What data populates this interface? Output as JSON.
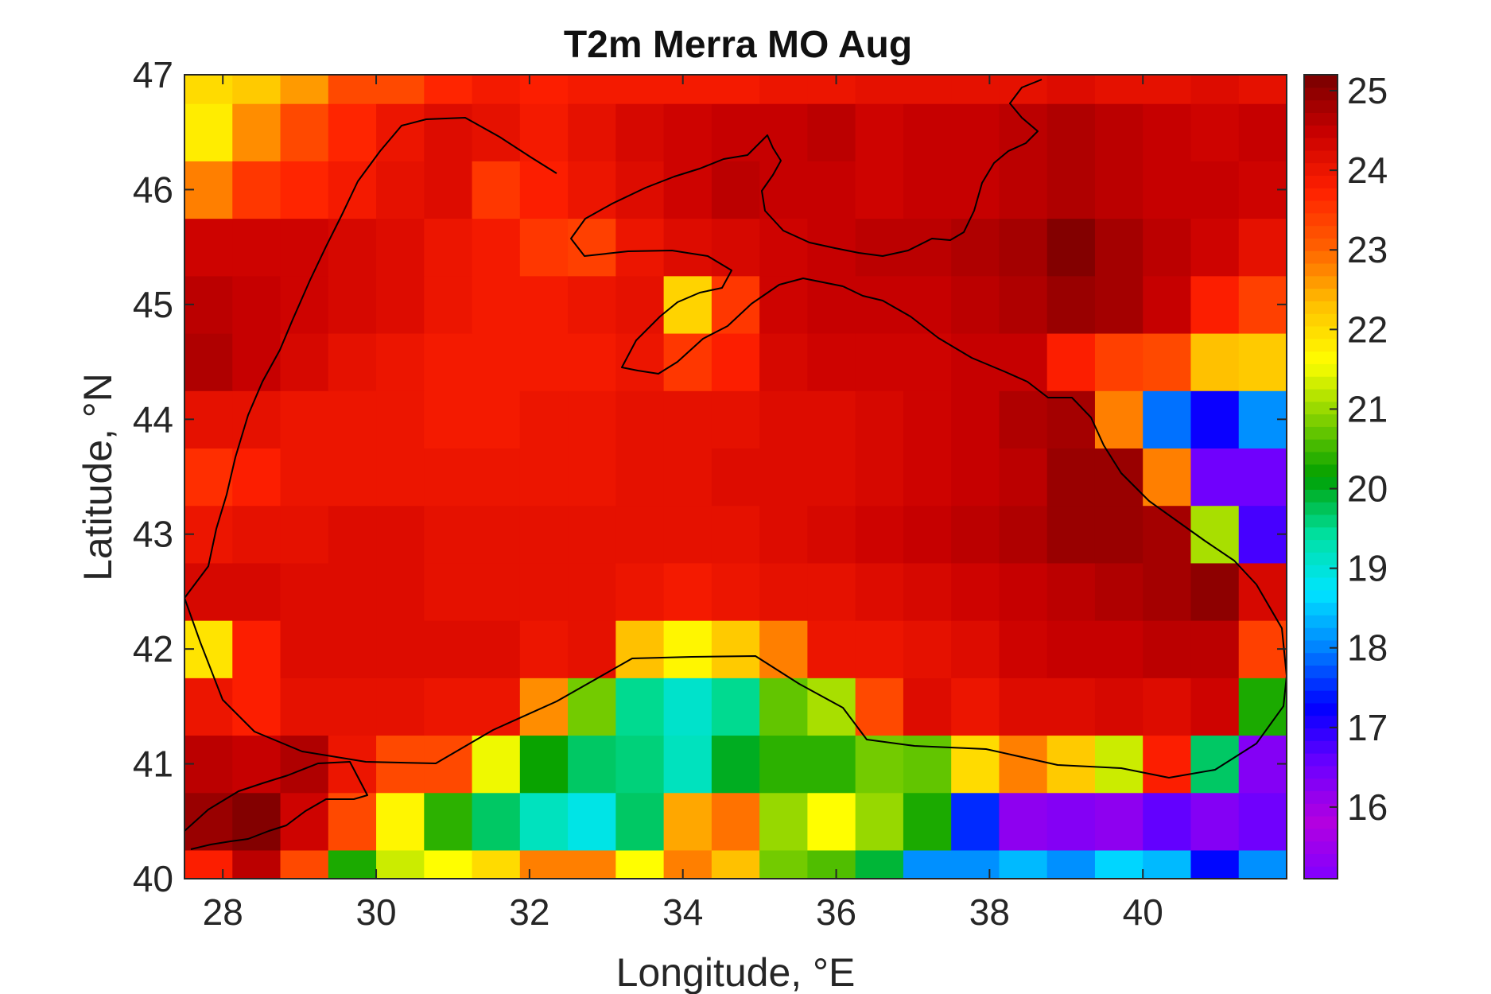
{
  "chart_data": {
    "type": "heatmap",
    "title": "T2m Merra MO Aug",
    "xlabel": "Longitude, °E",
    "ylabel": "Latitude, °N",
    "xlim": [
      27.5,
      41.875
    ],
    "ylim": [
      40,
      47
    ],
    "xticks": [
      "28",
      "30",
      "32",
      "34",
      "36",
      "38",
      "40"
    ],
    "yticks": [
      "40",
      "41",
      "42",
      "43",
      "44",
      "45",
      "46",
      "47"
    ],
    "colorbar_ticks": [
      "16",
      "17",
      "18",
      "19",
      "20",
      "21",
      "22",
      "23",
      "24",
      "25"
    ],
    "clim": [
      15.1,
      25.2
    ],
    "colormap": [
      "#8000ff",
      "#b400e0",
      "#6c00ff",
      "#0000ff",
      "#0080ff",
      "#00e5ff",
      "#00e0a0",
      "#00a000",
      "#80d000",
      "#ffff00",
      "#ffc000",
      "#ff6000",
      "#ff2000",
      "#c80000",
      "#780000"
    ],
    "grid_x_edges": [
      27.5,
      28.125,
      28.75,
      29.375,
      30.0,
      30.625,
      31.25,
      31.875,
      32.5,
      33.125,
      33.75,
      34.375,
      35.0,
      35.625,
      36.25,
      36.875,
      37.5,
      38.125,
      38.75,
      39.375,
      40.0,
      40.625,
      41.25,
      41.875
    ],
    "grid_y_edges": [
      40,
      40.25,
      40.75,
      41.25,
      41.75,
      42.25,
      42.75,
      43.25,
      43.75,
      44.25,
      44.75,
      45.25,
      45.75,
      46.25,
      46.75,
      47
    ],
    "values": [
      [
        23.8,
        24.6,
        23.3,
        20.3,
        21.3,
        21.6,
        22.0,
        22.8,
        22.8,
        21.6,
        22.8,
        22.3,
        20.8,
        20.6,
        19.9,
        18.1,
        18.1,
        18.4,
        18.1,
        18.6,
        18.4,
        17.3,
        18.1
      ],
      [
        24.9,
        25.1,
        24.4,
        23.3,
        21.7,
        20.4,
        19.7,
        19.2,
        18.9,
        19.7,
        22.5,
        22.9,
        21.0,
        21.6,
        21.0,
        20.3,
        17.5,
        16.2,
        16.3,
        16.2,
        16.6,
        16.3,
        16.5
      ],
      [
        24.6,
        24.5,
        24.7,
        24.0,
        23.3,
        23.3,
        21.5,
        20.2,
        19.7,
        19.6,
        19.2,
        20.0,
        20.4,
        20.4,
        20.8,
        20.7,
        22.0,
        22.8,
        22.2,
        21.3,
        23.8,
        19.7,
        16.3
      ],
      [
        24.0,
        23.8,
        24.1,
        24.1,
        24.1,
        24.0,
        24.0,
        22.7,
        20.8,
        19.5,
        19.1,
        19.5,
        20.7,
        21.1,
        23.3,
        24.2,
        24.0,
        24.2,
        24.2,
        24.3,
        24.2,
        24.4,
        20.3
      ],
      [
        21.9,
        23.8,
        24.2,
        24.2,
        24.2,
        24.2,
        24.2,
        24.0,
        24.1,
        22.3,
        21.7,
        22.2,
        22.8,
        24.0,
        24.0,
        24.1,
        24.2,
        24.4,
        24.5,
        24.5,
        24.6,
        24.6,
        23.4
      ],
      [
        24.3,
        24.3,
        24.2,
        24.2,
        24.2,
        24.1,
        24.1,
        24.1,
        24.1,
        24.0,
        23.9,
        24.0,
        24.1,
        24.1,
        24.2,
        24.3,
        24.4,
        24.5,
        24.6,
        24.7,
        24.8,
        25.0,
        24.3
      ],
      [
        24.0,
        24.1,
        24.1,
        24.2,
        24.2,
        24.1,
        24.1,
        24.1,
        24.1,
        24.1,
        24.1,
        24.1,
        24.2,
        24.3,
        24.4,
        24.5,
        24.6,
        24.7,
        24.9,
        24.9,
        24.8,
        21.1,
        16.8
      ],
      [
        23.6,
        23.8,
        24.0,
        24.0,
        24.0,
        24.0,
        24.0,
        24.0,
        24.0,
        24.1,
        24.1,
        24.2,
        24.2,
        24.2,
        24.3,
        24.4,
        24.5,
        24.6,
        24.9,
        24.9,
        22.8,
        16.5,
        16.5
      ],
      [
        24.1,
        24.1,
        24.0,
        24.0,
        24.0,
        23.9,
        23.9,
        24.0,
        24.0,
        24.1,
        24.1,
        24.1,
        24.2,
        24.2,
        24.3,
        24.4,
        24.5,
        24.7,
        24.8,
        22.8,
        17.9,
        17.2,
        18.1
      ],
      [
        24.7,
        24.5,
        24.3,
        24.1,
        24.0,
        23.9,
        23.9,
        23.9,
        23.9,
        24.0,
        23.5,
        23.8,
        24.3,
        24.4,
        24.4,
        24.4,
        24.5,
        24.5,
        23.8,
        23.4,
        23.3,
        22.3,
        22.2
      ],
      [
        24.6,
        24.5,
        24.4,
        24.3,
        24.2,
        24.0,
        23.9,
        23.9,
        24.0,
        24.1,
        22.1,
        23.5,
        24.4,
        24.5,
        24.5,
        24.5,
        24.6,
        24.7,
        24.9,
        24.8,
        24.5,
        23.8,
        23.4
      ],
      [
        24.4,
        24.4,
        24.4,
        24.3,
        24.2,
        24.0,
        23.9,
        23.5,
        23.4,
        24.0,
        24.2,
        24.3,
        24.4,
        24.5,
        24.6,
        24.6,
        24.7,
        24.8,
        25.1,
        24.8,
        24.6,
        24.4,
        24.1
      ],
      [
        22.8,
        23.5,
        23.7,
        23.9,
        24.1,
        24.2,
        23.5,
        23.8,
        24.0,
        24.2,
        24.4,
        24.6,
        24.5,
        24.5,
        24.4,
        24.5,
        24.5,
        24.6,
        24.7,
        24.6,
        24.5,
        24.5,
        24.4
      ],
      [
        21.8,
        22.7,
        23.3,
        23.7,
        24.0,
        24.2,
        24.1,
        23.9,
        24.1,
        24.3,
        24.4,
        24.5,
        24.5,
        24.6,
        24.4,
        24.5,
        24.5,
        24.6,
        24.7,
        24.6,
        24.5,
        24.4,
        24.5
      ],
      [
        22.0,
        22.2,
        22.6,
        23.3,
        23.3,
        23.7,
        23.9,
        23.8,
        23.9,
        23.9,
        23.9,
        23.9,
        24.0,
        24.0,
        24.1,
        24.1,
        24.1,
        24.1,
        24.2,
        24.1,
        24.1,
        24.2,
        24.1
      ]
    ],
    "grid": false,
    "colorbar_position": "right"
  }
}
